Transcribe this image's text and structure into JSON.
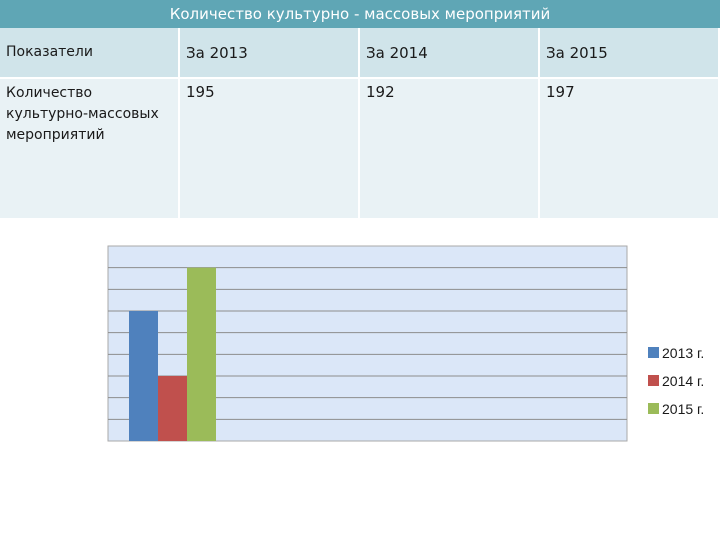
{
  "title": "Количество культурно - массовых мероприятий",
  "table": {
    "headers": [
      "Показатели",
      "За 2013",
      "За 2014",
      "За 2015"
    ],
    "row": {
      "label": "Количество культурно-массовых мероприятий",
      "values": [
        "195",
        "192",
        "197"
      ]
    }
  },
  "colors": {
    "title_bar": "#5fa6b5",
    "series": [
      "#4f81bd",
      "#c0504d",
      "#9bbb59"
    ],
    "plot_bg": "#dbe7f8"
  },
  "chart_data": {
    "type": "bar",
    "categories": [
      ""
    ],
    "series": [
      {
        "name": "2013 г.",
        "values": [
          195
        ]
      },
      {
        "name": "2014 г.",
        "values": [
          192
        ]
      },
      {
        "name": "2015 г.",
        "values": [
          197
        ]
      }
    ],
    "title": "",
    "xlabel": "",
    "ylabel": "",
    "ylim": [
      189,
      198
    ],
    "grid": true,
    "legend_position": "right"
  }
}
